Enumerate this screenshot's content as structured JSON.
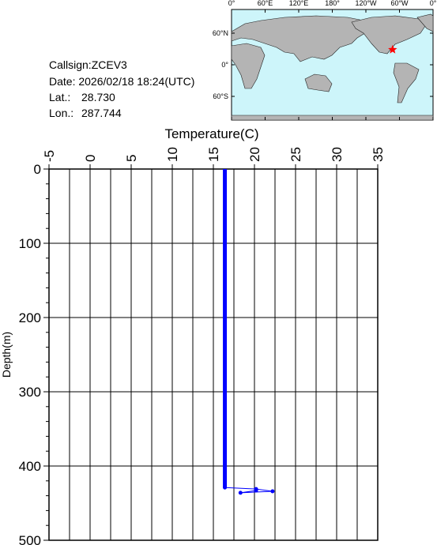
{
  "header": {
    "lines": [
      "Callsign:ZCEV3",
      "Date:  2026/02/18 18:24(UTC)"
    ],
    "lat": {
      "label": "Lat.:",
      "value": "28.730"
    },
    "lon": {
      "label": "Lon.:",
      "value": "287.744"
    }
  },
  "map": {
    "lon_ticks": [
      {
        "value": 0,
        "label": "0°"
      },
      {
        "value": 60,
        "label": "60°E"
      },
      {
        "value": 120,
        "label": "120°E"
      },
      {
        "value": 180,
        "label": "180°"
      },
      {
        "value": 240,
        "label": "120°W"
      },
      {
        "value": 300,
        "label": "60°W"
      },
      {
        "value": 360,
        "label": "0°"
      }
    ],
    "lat_ticks": [
      {
        "value": 60,
        "label": "60°N"
      },
      {
        "value": 0,
        "label": "0°"
      },
      {
        "value": -60,
        "label": "60°S"
      }
    ]
  },
  "chart_data": {
    "type": "line",
    "x_label": "Temperature(C)",
    "y_label": "Depth(m)",
    "xlim": [
      -5,
      35
    ],
    "xticks": [
      -5,
      0,
      5,
      10,
      15,
      20,
      25,
      30,
      35
    ],
    "ylim": [
      0,
      500
    ],
    "yticks": [
      0,
      100,
      200,
      300,
      400,
      500
    ],
    "y_inverted": true,
    "grid": true,
    "series": [
      {
        "color": "#0000ff",
        "x": [
          16.4,
          16.4,
          20.2,
          22.2,
          18.3,
          20.2
        ],
        "values": [
          0,
          429,
          431,
          434,
          436,
          433
        ]
      }
    ]
  }
}
